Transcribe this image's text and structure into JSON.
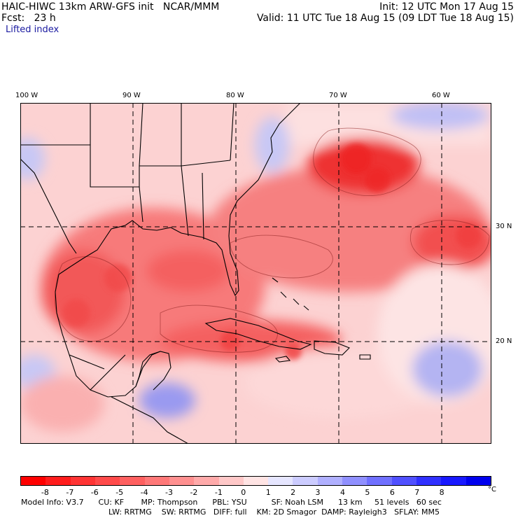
{
  "header": {
    "title_left": "HAIC-HIWC 13km ARW-GFS init   NCAR/MMM",
    "forecast": "Fcst:   23 h",
    "init": "Init: 12 UTC Mon 17 Aug 15",
    "valid": "Valid: 11 UTC Tue 18 Aug 15 (09 LDT Tue 18 Aug 15)",
    "field": "Lifted index"
  },
  "map": {
    "lon_labels": [
      "100 W",
      "90 W",
      "80 W",
      "70 W",
      "60 W"
    ],
    "lat_labels": [
      "30 N",
      "20 N"
    ],
    "colors": {
      "border": "#000000",
      "deep_red": "#ee2020",
      "red": "#f45050",
      "light_red": "#f98888",
      "pale_red": "#fcc0c0",
      "pale_blue": "#c8c8f5",
      "blue": "#8a8af0"
    }
  },
  "colorbar": {
    "labels": [
      "-8",
      "-7",
      "-6",
      "-5",
      "-4",
      "-3",
      "-2",
      "-1",
      "0",
      "1",
      "2",
      "3",
      "4",
      "5",
      "6",
      "7",
      "8"
    ],
    "unit": "°C",
    "colors": [
      "#ff0000",
      "#ff1c1c",
      "#ff3434",
      "#ff4a4a",
      "#ff6060",
      "#ff7878",
      "#ff9090",
      "#ffaaaa",
      "#ffc8c8",
      "#ffe4e4",
      "#e6e6ff",
      "#ccccff",
      "#b0b0ff",
      "#9090ff",
      "#7070ff",
      "#5050ff",
      "#3030ff",
      "#1818ff",
      "#0000ee"
    ]
  },
  "info": {
    "line1": "Model Info: V3.7      CU: KF       MP: Thompson      PBL: YSU          SF: Noah LSM      13 km     51 levels   60 sec",
    "line2": "LW: RRTMG    SW: RRTMG   DIFF: full    KM: 2D Smagor  DAMP: Rayleigh3   SFLAY: MM5"
  }
}
